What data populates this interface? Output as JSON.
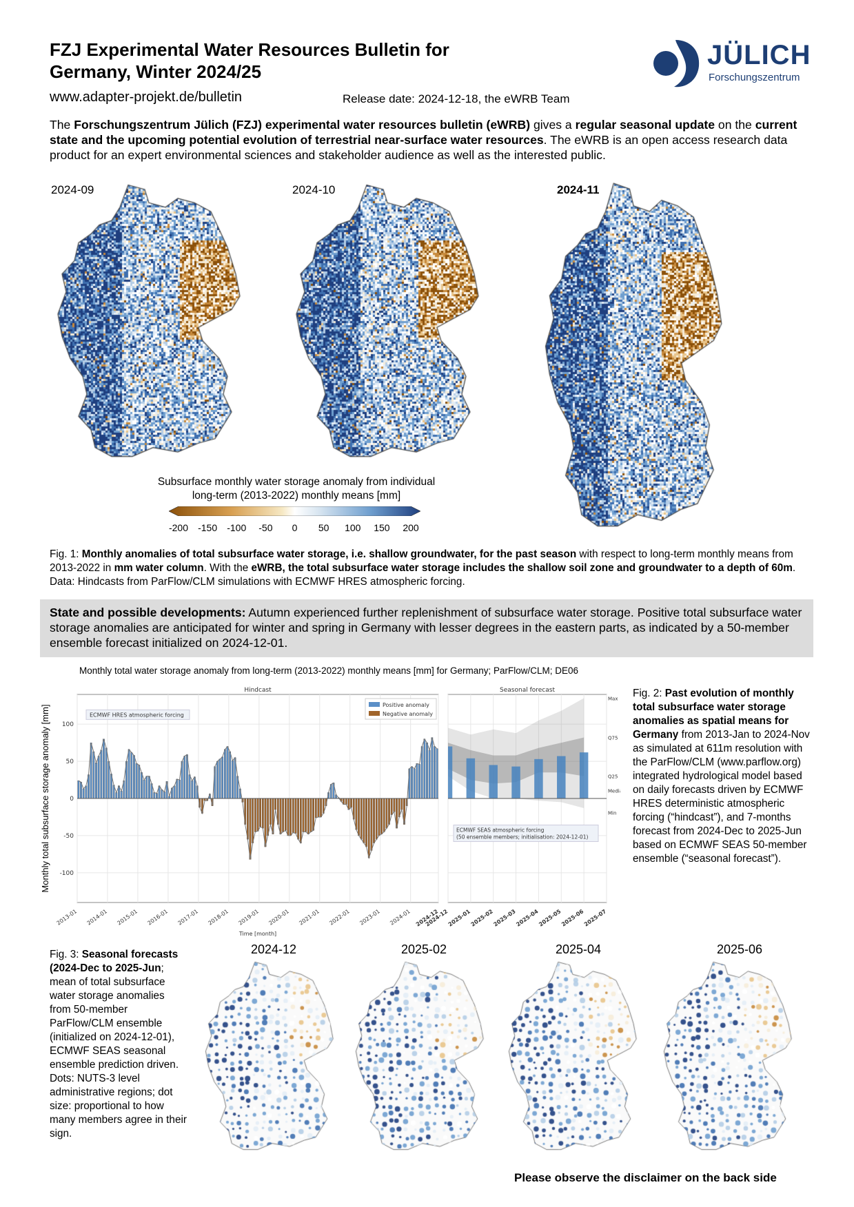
{
  "header": {
    "title_line1": "FZJ Experimental Water Resources Bulletin for",
    "title_line2": "Germany, Winter 2024/25",
    "url": "www.adapter-projekt.de/bulletin",
    "release": "Release date: 2024-12-18, the eWRB Team",
    "logo_word": "JÜLICH",
    "logo_sub": "Forschungszentrum",
    "brand_color": "#1d3e74"
  },
  "intro": {
    "p1": "The ",
    "b1": "Forschungszentrum Jülich (FZJ) experimental water resources bulletin (eWRB)",
    "p2": " gives a ",
    "b2": "regular seasonal update",
    "p3": " on the ",
    "b3": "current state and the upcoming potential evolution of terrestrial near-surface water resources",
    "p4": ". The eWRB is an open access research data product for an expert environmental sciences and stakeholder audience as well as the interested public."
  },
  "maps": [
    {
      "label": "2024-09"
    },
    {
      "label": "2024-10"
    },
    {
      "label": "2024-11"
    }
  ],
  "colorbar": {
    "title_line1": "Subsurface monthly water storage anomaly from individual",
    "title_line2": "long-term (2013-2022) monthly means [mm]",
    "ticks": [
      "-200",
      "-150",
      "-100",
      "-50",
      "0",
      "50",
      "100",
      "150",
      "200"
    ],
    "negative_color": "#8c510a",
    "positive_color": "#1f3f7f"
  },
  "fig1": {
    "p1": "Fig. 1: ",
    "b1": "Monthly anomalies of total subsurface water storage, i.e. shallow groundwater, for the past season",
    "p2": " with respect to long-term monthly means from 2013-2022 in ",
    "b2": "mm water column",
    "p3": ". With the ",
    "b3": "eWRB, the total subsurface water storage includes the shallow soil zone and groundwater to a depth of 60m",
    "p4": ". Data: Hindcasts from ParFlow/CLM simulations with ECMWF HRES atmospheric forcing."
  },
  "state": {
    "b1": "State and possible developments:",
    "p1": " Autumn experienced further replenishment of subsurface water storage. Positive total subsurface water storage anomalies are anticipated for winter and spring in Germany with lesser degrees in the eastern parts, as indicated by a 50-member ensemble forecast initialized on 2024-12-01."
  },
  "chart_data": {
    "type": "bar",
    "title": "Monthly total water storage anomaly from long-term (2013-2022) monthly means [mm] for Germany; ParFlow/CLM; DE06",
    "ylabel": "Monthly total subsurface storage anomaly [mm]",
    "xlabel": "Time [month]",
    "ylim": [
      -140,
      140
    ],
    "yticks": [
      100,
      50,
      0,
      -50,
      -100
    ],
    "grid": true,
    "colors": {
      "positive": "#5b8fc7",
      "negative": "#a0642a"
    },
    "hindcast": {
      "panel_title": "Hindcast",
      "annotation": "ECMWF HRES atmospheric forcing",
      "legend": [
        "Positive anomaly",
        "Negative anomaly"
      ],
      "legend_position": "top-right",
      "start": "2013-01",
      "end": "2024-11",
      "xticks": [
        "2013-01",
        "2014-01",
        "2015-01",
        "2016-01",
        "2017-01",
        "2018-01",
        "2019-01",
        "2020-01",
        "2021-01",
        "2022-01",
        "2023-01",
        "2024-01",
        "2024-12"
      ],
      "values": [
        24,
        22,
        13,
        17,
        32,
        75,
        63,
        48,
        57,
        65,
        80,
        68,
        50,
        33,
        18,
        8,
        17,
        10,
        24,
        50,
        66,
        62,
        58,
        47,
        45,
        35,
        25,
        30,
        30,
        20,
        8,
        7,
        17,
        12,
        9,
        23,
        3,
        14,
        17,
        26,
        25,
        50,
        57,
        59,
        32,
        24,
        29,
        17,
        -12,
        -20,
        -3,
        -3,
        6,
        -10,
        43,
        50,
        53,
        56,
        66,
        70,
        63,
        51,
        55,
        30,
        13,
        -5,
        -35,
        -55,
        -82,
        -60,
        -45,
        -44,
        -38,
        -40,
        -65,
        -50,
        -35,
        -48,
        -15,
        -35,
        -48,
        -45,
        -43,
        -50,
        -50,
        -46,
        -47,
        -55,
        -60,
        -45,
        -45,
        -48,
        -45,
        -43,
        -26,
        -25,
        -25,
        -20,
        -10,
        8,
        19,
        21,
        5,
        1,
        -4,
        -8,
        -8,
        -15,
        -12,
        -28,
        -42,
        -50,
        -55,
        -60,
        -65,
        -80,
        -70,
        -60,
        -55,
        -50,
        -48,
        -45,
        -40,
        -35,
        -22,
        -18,
        -40,
        -25,
        -15,
        -35,
        -10,
        40,
        43,
        40,
        47,
        46,
        70,
        80,
        75,
        65,
        82,
        70,
        67
      ]
    },
    "forecast": {
      "panel_title": "Seasonal forecast",
      "annotation_line1": "ECMWF SEAS atmospheric forcing",
      "annotation_line2": "(50 ensemble members; initialisation: 2024-12-01)",
      "categories": [
        "2024-12",
        "2025-01",
        "2025-02",
        "2025-03",
        "2025-04",
        "2025-05",
        "2025-06"
      ],
      "xticks": [
        "2024-12",
        "2025-01",
        "2025-02",
        "2025-03",
        "2025-04",
        "2025-05",
        "2025-06",
        "2025-07"
      ],
      "mean": [
        70,
        54,
        45,
        43,
        53,
        57,
        62
      ],
      "max": [
        95,
        86,
        93,
        88,
        105,
        118,
        135
      ],
      "q75": [
        75,
        65,
        58,
        58,
        68,
        75,
        82
      ],
      "q25": [
        40,
        25,
        20,
        22,
        35,
        35,
        30
      ],
      "min": [
        30,
        10,
        0,
        0,
        -3,
        -5,
        -13
      ],
      "band_labels": [
        "Max",
        "Q75",
        "Q25",
        "Median",
        "Min"
      ]
    }
  },
  "fig2": {
    "p1": "Fig. 2: ",
    "b1": "Past evolution of monthly total subsurface water storage anomalies as spatial means for Germany",
    "p2": " from 2013-Jan to 2024-Nov as simulated at 611m resolution with the ParFlow/CLM (www.parflow.org) integrated hydrological model based on daily forecasts driven by ECMWF HRES deterministic atmospheric forcing (“hindcast”), and 7-months forecast from 2024-Dec to 2025-Jun based on ECMWF SEAS 50-member ensemble (“seasonal forecast”)."
  },
  "fig3": {
    "p1": "Fig. 3: ",
    "b1": "Seasonal forecasts (2024-Dec to 2025-Jun",
    "p2": "; mean of total subsurface water storage anomalies from 50-member ParFlow/CLM ensemble (initialized on 2024-12-01), ECMWF SEAS seasonal ensemble prediction driven. Dots: NUTS-3 level administrative regions; dot size: proportional to how many members agree in their sign."
  },
  "dot_maps": [
    {
      "label": "2024-12"
    },
    {
      "label": "2025-02"
    },
    {
      "label": "2025-04"
    },
    {
      "label": "2025-06"
    }
  ],
  "footer": {
    "disclaimer": "Please observe the disclaimer on the back side"
  }
}
